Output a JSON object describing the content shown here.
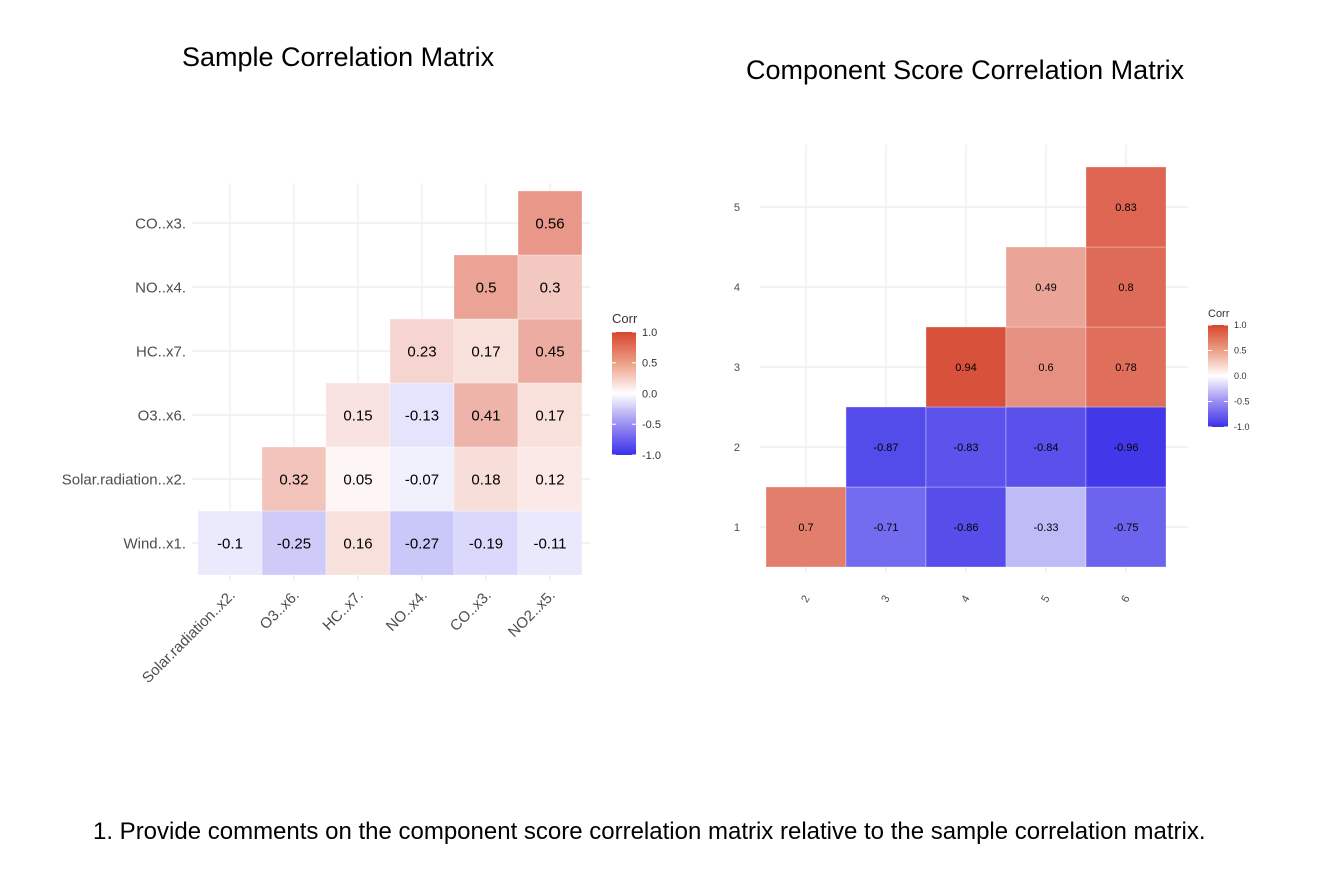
{
  "chart_data": [
    {
      "type": "heatmap",
      "title": "Sample Correlation Matrix",
      "x_categories": [
        "Solar.radiation..x2.",
        "O3..x6.",
        "HC..x7.",
        "NO..x4.",
        "CO..x3.",
        "NO2..x5."
      ],
      "y_categories": [
        "Wind..x1.",
        "Solar.radiation..x2.",
        "O3..x6.",
        "HC..x7.",
        "NO..x4.",
        "CO..x3."
      ],
      "cells": [
        {
          "x": "Solar.radiation..x2.",
          "y": "Wind..x1.",
          "value": -0.1,
          "label": "-0.1"
        },
        {
          "x": "O3..x6.",
          "y": "Wind..x1.",
          "value": -0.25,
          "label": "-0.25"
        },
        {
          "x": "HC..x7.",
          "y": "Wind..x1.",
          "value": 0.16,
          "label": "0.16"
        },
        {
          "x": "NO..x4.",
          "y": "Wind..x1.",
          "value": -0.27,
          "label": "-0.27"
        },
        {
          "x": "CO..x3.",
          "y": "Wind..x1.",
          "value": -0.19,
          "label": "-0.19"
        },
        {
          "x": "NO2..x5.",
          "y": "Wind..x1.",
          "value": -0.11,
          "label": "-0.11"
        },
        {
          "x": "O3..x6.",
          "y": "Solar.radiation..x2.",
          "value": 0.32,
          "label": "0.32"
        },
        {
          "x": "HC..x7.",
          "y": "Solar.radiation..x2.",
          "value": 0.05,
          "label": "0.05"
        },
        {
          "x": "NO..x4.",
          "y": "Solar.radiation..x2.",
          "value": -0.07,
          "label": "-0.07"
        },
        {
          "x": "CO..x3.",
          "y": "Solar.radiation..x2.",
          "value": 0.18,
          "label": "0.18"
        },
        {
          "x": "NO2..x5.",
          "y": "Solar.radiation..x2.",
          "value": 0.12,
          "label": "0.12"
        },
        {
          "x": "HC..x7.",
          "y": "O3..x6.",
          "value": 0.15,
          "label": "0.15"
        },
        {
          "x": "NO..x4.",
          "y": "O3..x6.",
          "value": -0.13,
          "label": "-0.13"
        },
        {
          "x": "CO..x3.",
          "y": "O3..x6.",
          "value": 0.41,
          "label": "0.41"
        },
        {
          "x": "NO2..x5.",
          "y": "O3..x6.",
          "value": 0.17,
          "label": "0.17"
        },
        {
          "x": "NO..x4.",
          "y": "HC..x7.",
          "value": 0.23,
          "label": "0.23"
        },
        {
          "x": "CO..x3.",
          "y": "HC..x7.",
          "value": 0.17,
          "label": "0.17"
        },
        {
          "x": "NO2..x5.",
          "y": "HC..x7.",
          "value": 0.45,
          "label": "0.45"
        },
        {
          "x": "CO..x3.",
          "y": "NO..x4.",
          "value": 0.5,
          "label": "0.5"
        },
        {
          "x": "NO2..x5.",
          "y": "NO..x4.",
          "value": 0.3,
          "label": "0.3"
        },
        {
          "x": "NO2..x5.",
          "y": "CO..x3.",
          "value": 0.56,
          "label": "0.56"
        }
      ],
      "legend": {
        "title": "Corr",
        "ticks": [
          "1.0",
          "0.5",
          "0.0",
          "-0.5",
          "-1.0"
        ],
        "placement": "right"
      },
      "color_scale": {
        "low": "#3b30e8",
        "mid": "#ffffff",
        "high": "#d6462d",
        "range": [
          -1,
          1
        ]
      },
      "grid": true
    },
    {
      "type": "heatmap",
      "title": "Component Score Correlation Matrix",
      "x_categories": [
        "2",
        "3",
        "4",
        "5",
        "6"
      ],
      "y_categories": [
        "1",
        "2",
        "3",
        "4",
        "5"
      ],
      "cells": [
        {
          "x": "2",
          "y": "1",
          "value": 0.7,
          "label": "0.7"
        },
        {
          "x": "3",
          "y": "1",
          "value": -0.71,
          "label": "-0.71"
        },
        {
          "x": "4",
          "y": "1",
          "value": -0.86,
          "label": "-0.86"
        },
        {
          "x": "5",
          "y": "1",
          "value": -0.33,
          "label": "-0.33"
        },
        {
          "x": "6",
          "y": "1",
          "value": -0.75,
          "label": "-0.75"
        },
        {
          "x": "3",
          "y": "2",
          "value": -0.87,
          "label": "-0.87"
        },
        {
          "x": "4",
          "y": "2",
          "value": -0.83,
          "label": "-0.83"
        },
        {
          "x": "5",
          "y": "2",
          "value": -0.84,
          "label": "-0.84"
        },
        {
          "x": "6",
          "y": "2",
          "value": -0.96,
          "label": "-0.96"
        },
        {
          "x": "4",
          "y": "3",
          "value": 0.94,
          "label": "0.94"
        },
        {
          "x": "5",
          "y": "3",
          "value": 0.6,
          "label": "0.6"
        },
        {
          "x": "6",
          "y": "3",
          "value": 0.78,
          "label": "0.78"
        },
        {
          "x": "5",
          "y": "4",
          "value": 0.49,
          "label": "0.49"
        },
        {
          "x": "6",
          "y": "4",
          "value": 0.8,
          "label": "0.8"
        },
        {
          "x": "6",
          "y": "5",
          "value": 0.83,
          "label": "0.83"
        }
      ],
      "legend": {
        "title": "Corr",
        "ticks": [
          "1.0",
          "0.5",
          "0.0",
          "-0.5",
          "-1.0"
        ],
        "placement": "right"
      },
      "color_scale": {
        "low": "#3b30e8",
        "mid": "#ffffff",
        "high": "#d6462d",
        "range": [
          -1,
          1
        ]
      },
      "grid": true
    }
  ],
  "question": "1. Provide comments on the component score correlation matrix relative to the sample correlation matrix."
}
